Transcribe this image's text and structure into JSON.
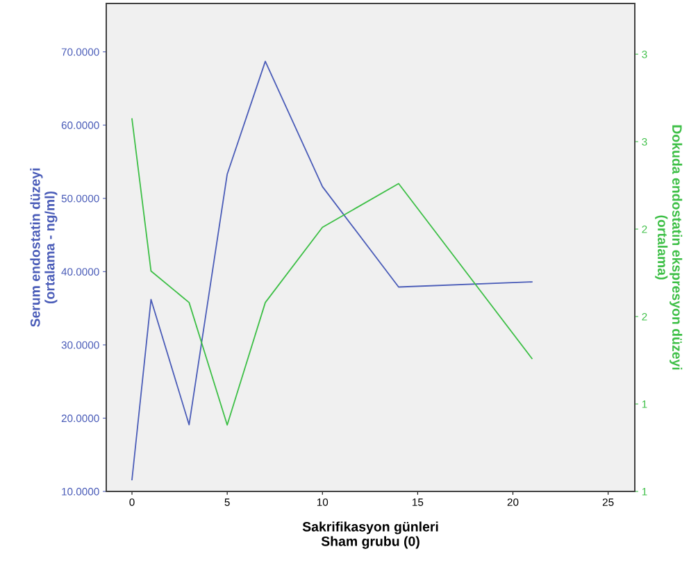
{
  "chart_data": {
    "type": "line",
    "xlabel": "Sakrifikasyon günleri\nSham grubu (0)",
    "ylabel": "Serum endostatin düzeyi\n(ortalama - ng/ml)",
    "y2label": "Dokuda endostatin ekspresyon düzeyi\n(ortalama)",
    "x": [
      0,
      1,
      3,
      5,
      7,
      10,
      14,
      21
    ],
    "series": [
      {
        "color": "#4a5cb8",
        "values": [
          11.6,
          36.2,
          19.1,
          53.3,
          68.7,
          51.6,
          37.9,
          38.6
        ]
      },
      {
        "color": "#3dbf46",
        "axis": "y2",
        "values": [
          2.63,
          1.76,
          1.58,
          0.88,
          1.58,
          2.01,
          2.26,
          1.26
        ]
      }
    ],
    "xlim": [
      -1.35,
      26.4
    ],
    "xticks": [
      0,
      5,
      10,
      15,
      20,
      25
    ],
    "ylim": [
      10,
      76.6
    ],
    "yticks": [
      {
        "value": 10,
        "label": "10.0000"
      },
      {
        "value": 20,
        "label": "20.0000"
      },
      {
        "value": 30,
        "label": "30.0000"
      },
      {
        "value": 40,
        "label": "40.0000"
      },
      {
        "value": 50,
        "label": "50.0000"
      },
      {
        "value": 60,
        "label": "60.0000"
      },
      {
        "value": 70,
        "label": "70.0000"
      }
    ],
    "y2lim": [
      0.5,
      3.29
    ],
    "y2ticks": [
      {
        "value": 0.5,
        "label": "1"
      },
      {
        "value": 1.0,
        "label": "1"
      },
      {
        "value": 1.5,
        "label": "2"
      },
      {
        "value": 2.0,
        "label": "2"
      },
      {
        "value": 2.5,
        "label": "3"
      },
      {
        "value": 3.0,
        "label": "3"
      }
    ],
    "grid": false,
    "legend": false,
    "marker": "none",
    "line_style": "solid"
  }
}
